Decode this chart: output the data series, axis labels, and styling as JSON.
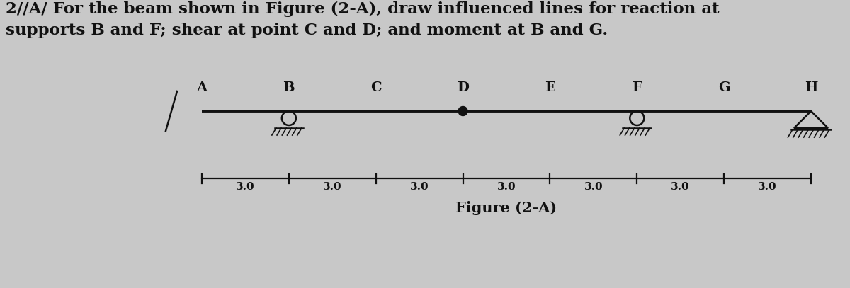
{
  "title_line1": "2//A/ For the beam shown in Figure (2-A), draw influenced lines for reaction at",
  "title_line2": "supports B and F; shear at point C and D; and moment at B and G.",
  "figure_label": "Figure (2-A)",
  "nodes": [
    "A",
    "B",
    "C",
    "D",
    "E",
    "F",
    "G",
    "H"
  ],
  "span": 3.0,
  "num_spans": 7,
  "roller_nodes": [
    "B",
    "F"
  ],
  "pin_nodes": [
    "H"
  ],
  "hinge_nodes": [
    "D"
  ],
  "bg_color": "#c8c8c8",
  "text_color": "#111111",
  "beam_color": "#111111",
  "support_color": "#111111",
  "title_fontsize": 16.5,
  "label_fontsize": 14,
  "dim_fontsize": 11
}
